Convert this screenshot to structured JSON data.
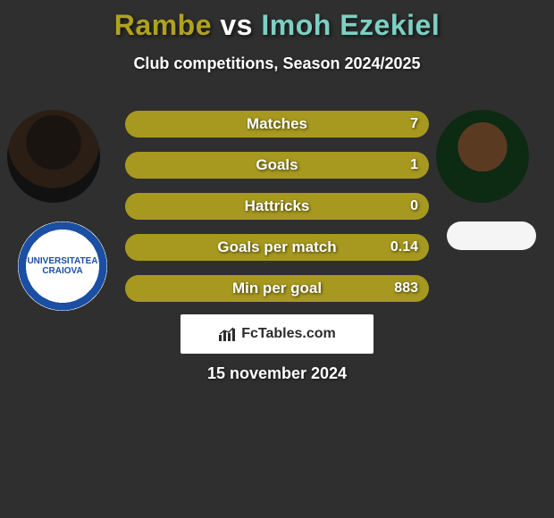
{
  "title": {
    "player1": "Rambe",
    "vs": " vs ",
    "player2": "Imoh Ezekiel",
    "color1": "#b0a21d",
    "color2": "#7cd0c3"
  },
  "subtitle": "Club competitions, Season 2024/2025",
  "bar_bg": "#4a4a4a",
  "bar_fill_color": "#a7991f",
  "bars": [
    {
      "label": "Matches",
      "left_pct": 100,
      "val_left": "7"
    },
    {
      "label": "Goals",
      "left_pct": 100,
      "val_left": "1"
    },
    {
      "label": "Hattricks",
      "left_pct": 100,
      "val_left": "0"
    },
    {
      "label": "Goals per match",
      "left_pct": 100,
      "val_left": "0.14"
    },
    {
      "label": "Min per goal",
      "left_pct": 100,
      "val_left": "883"
    }
  ],
  "club_left_text": "UNIVERSITATEA CRAIOVA",
  "logo_text": "FcTables.com",
  "date": "15 november 2024",
  "card_bg": "#2f2f2f"
}
